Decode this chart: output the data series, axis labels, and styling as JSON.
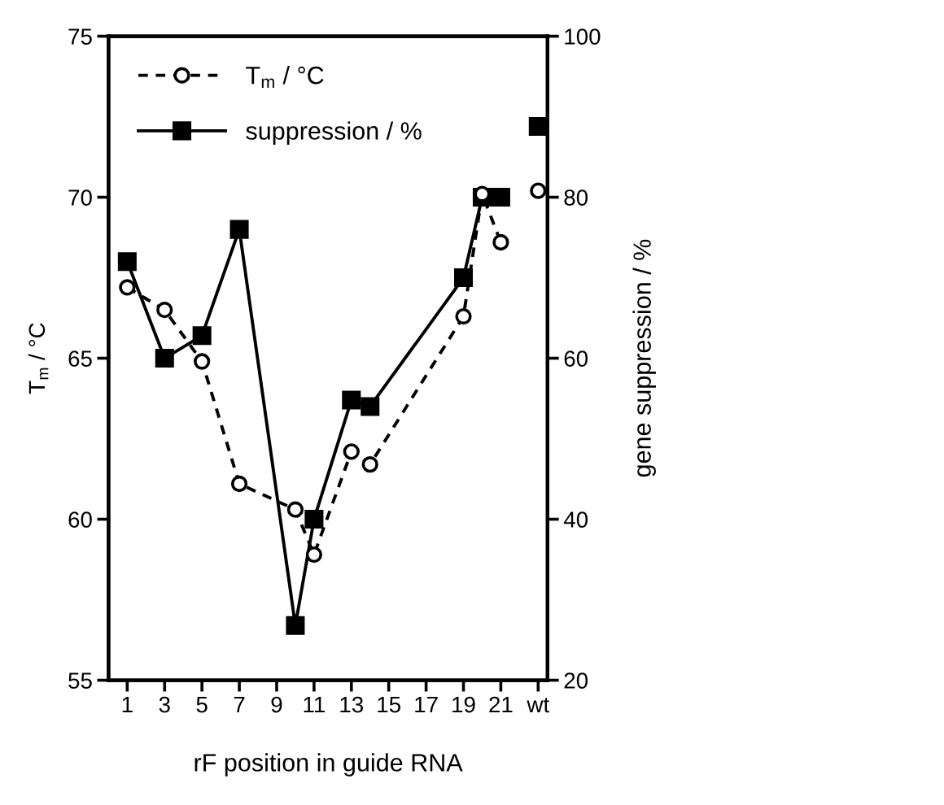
{
  "chart_data": {
    "type": "line",
    "xlabel": "rF position in guide RNA",
    "ylabel": "T$_{m}$ / °C",
    "y2label": "gene suppression / %",
    "xlim": [
      0,
      23.5
    ],
    "xticks": [
      1,
      3,
      5,
      7,
      9,
      11,
      13,
      15,
      17,
      19,
      21,
      {
        "value": 23,
        "label": "wt"
      }
    ],
    "ylim": [
      55,
      75
    ],
    "yticks": [
      55,
      60,
      65,
      70,
      75
    ],
    "y2lim": [
      20,
      100
    ],
    "y2ticks": [
      20,
      40,
      60,
      80,
      100
    ],
    "legend": "top left",
    "grid": false,
    "series": [
      {
        "name": "T$_{m}$ / °C",
        "color": "#000000",
        "marker": "circle",
        "line_style": "dashed",
        "axis": "y",
        "x": [
          1,
          3,
          5,
          7,
          10,
          11,
          13,
          14,
          19,
          20,
          21,
          22,
          23
        ],
        "values": [
          67.2,
          66.5,
          64.9,
          61.1,
          60.3,
          58.9,
          62.1,
          61.7,
          66.3,
          70.1,
          68.6,
          null,
          70.2
        ]
      },
      {
        "name": "suppression / %",
        "color": "#000000",
        "marker": "square",
        "line_style": "solid",
        "axis": "y2",
        "x": [
          1,
          3,
          5,
          7,
          10,
          11,
          13,
          14,
          19,
          20,
          21,
          22,
          23
        ],
        "values": [
          72,
          60,
          62.8,
          76,
          26.8,
          40,
          54.8,
          54,
          70,
          80,
          80,
          null,
          88.8
        ]
      }
    ]
  }
}
